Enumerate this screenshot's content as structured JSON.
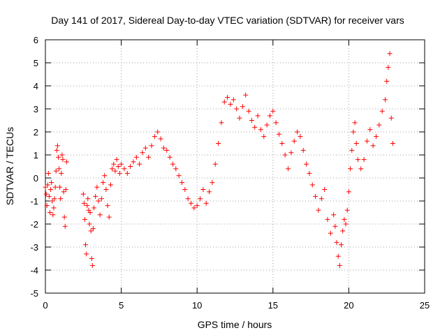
{
  "chart_data": {
    "type": "scatter",
    "title": "Day 141 of 2017, Sidereal Day-to-day VTEC variation (SDTVAR) for receiver vars",
    "xlabel": "GPS time / hours",
    "ylabel": "SDTVAR / TECUs",
    "xlim": [
      0,
      25
    ],
    "ylim": [
      -5,
      6
    ],
    "xticks": [
      0,
      5,
      10,
      15,
      20,
      25
    ],
    "yticks": [
      -5,
      -4,
      -3,
      -2,
      -1,
      0,
      1,
      2,
      3,
      4,
      5,
      6
    ],
    "grid": true,
    "marker": "+",
    "color": "#ff0000",
    "series": [
      {
        "name": "vars",
        "x": [
          0.0,
          0.05,
          0.1,
          0.15,
          0.2,
          0.25,
          0.3,
          0.35,
          0.4,
          0.45,
          0.5,
          0.55,
          0.6,
          0.65,
          0.7,
          0.75,
          0.8,
          0.85,
          0.9,
          0.95,
          1.0,
          1.05,
          1.1,
          1.15,
          1.2,
          1.25,
          1.3,
          1.35,
          1.4,
          2.5,
          2.55,
          2.6,
          2.65,
          2.7,
          2.75,
          2.8,
          2.85,
          2.9,
          2.95,
          3.0,
          3.05,
          3.1,
          3.15,
          3.2,
          3.3,
          3.4,
          3.5,
          3.6,
          3.7,
          3.8,
          3.9,
          4.0,
          4.1,
          4.2,
          4.3,
          4.4,
          4.5,
          4.6,
          4.7,
          4.8,
          4.9,
          5.0,
          5.2,
          5.4,
          5.6,
          5.8,
          6.0,
          6.2,
          6.4,
          6.6,
          6.8,
          7.0,
          7.2,
          7.4,
          7.6,
          7.8,
          8.0,
          8.2,
          8.4,
          8.6,
          8.8,
          9.0,
          9.2,
          9.4,
          9.6,
          9.8,
          10.0,
          10.2,
          10.4,
          10.6,
          10.8,
          11.0,
          11.2,
          11.4,
          11.6,
          11.8,
          12.0,
          12.2,
          12.4,
          12.6,
          12.8,
          13.0,
          13.2,
          13.4,
          13.6,
          13.8,
          14.0,
          14.2,
          14.4,
          14.6,
          14.8,
          15.0,
          15.2,
          15.4,
          15.6,
          15.8,
          16.0,
          16.2,
          16.4,
          16.6,
          16.8,
          17.0,
          17.2,
          17.4,
          17.6,
          17.8,
          18.0,
          18.2,
          18.4,
          18.6,
          18.8,
          19.0,
          19.1,
          19.2,
          19.3,
          19.4,
          19.5,
          19.6,
          19.7,
          19.8,
          19.9,
          20.0,
          20.1,
          20.2,
          20.3,
          20.4,
          20.5,
          20.6,
          20.8,
          21.0,
          21.2,
          21.4,
          21.6,
          21.8,
          22.0,
          22.2,
          22.4,
          22.5,
          22.6,
          22.7,
          22.8,
          22.9
        ],
        "y": [
          -0.4,
          -0.7,
          -1.2,
          -0.3,
          0.2,
          -0.8,
          -1.5,
          -0.5,
          -0.2,
          -1.0,
          -1.6,
          -1.3,
          -0.9,
          -0.4,
          0.3,
          1.2,
          1.4,
          0.9,
          0.4,
          -0.4,
          -0.9,
          0.2,
          1.0,
          0.8,
          -0.6,
          -1.7,
          -2.1,
          -0.5,
          0.7,
          -0.7,
          -1.1,
          -1.8,
          -2.9,
          -3.3,
          -1.2,
          -0.9,
          -1.4,
          -2.0,
          -1.5,
          -2.3,
          -3.5,
          -3.8,
          -2.2,
          -1.3,
          -0.8,
          -0.4,
          -1.0,
          -1.6,
          -0.9,
          -0.2,
          0.1,
          -0.5,
          -1.2,
          -1.7,
          -0.3,
          0.4,
          0.6,
          0.3,
          0.8,
          0.5,
          0.2,
          0.6,
          0.4,
          0.2,
          0.5,
          0.7,
          0.9,
          0.6,
          1.1,
          1.3,
          0.9,
          1.4,
          1.8,
          2.0,
          1.7,
          1.3,
          1.2,
          0.9,
          0.6,
          0.4,
          0.1,
          -0.2,
          -0.5,
          -0.9,
          -1.1,
          -1.3,
          -1.2,
          -0.9,
          -0.5,
          -1.1,
          -0.6,
          -0.2,
          0.6,
          1.5,
          2.4,
          3.3,
          3.5,
          3.2,
          3.4,
          3.0,
          2.6,
          3.1,
          3.6,
          2.9,
          2.5,
          2.2,
          2.7,
          2.1,
          1.8,
          2.3,
          2.7,
          2.9,
          2.4,
          1.9,
          1.5,
          1.0,
          0.4,
          1.1,
          1.6,
          2.0,
          1.8,
          1.2,
          0.6,
          0.2,
          -0.3,
          -0.8,
          -1.4,
          -0.9,
          -0.5,
          -1.8,
          -2.4,
          -1.6,
          -2.1,
          -2.8,
          -3.4,
          -3.8,
          -2.9,
          -2.3,
          -1.8,
          -2.0,
          -1.4,
          -0.6,
          0.4,
          1.2,
          2.0,
          2.4,
          1.5,
          0.8,
          0.4,
          0.8,
          1.6,
          2.1,
          1.4,
          1.8,
          2.3,
          2.9,
          3.4,
          4.2,
          4.8,
          5.4,
          2.6,
          1.5
        ]
      }
    ]
  }
}
